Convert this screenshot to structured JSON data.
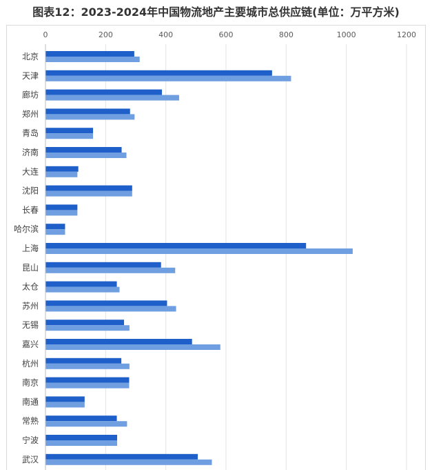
{
  "page": {
    "title": "图表12：2023-2024年中国物流地产主要城市总供应链(单位：万平方米)"
  },
  "chart_data": {
    "type": "bar",
    "orientation": "horizontal",
    "title": "图表12：2023-2024年中国物流地产主要城市总供应链(单位：万平方米)",
    "xlim": [
      0,
      1200
    ],
    "xticks": [
      0,
      200,
      400,
      600,
      800,
      1000,
      1200
    ],
    "grid": true,
    "legend": "none",
    "categories": [
      "北京",
      "天津",
      "廊坊",
      "郑州",
      "青岛",
      "济南",
      "大连",
      "沈阳",
      "长春",
      "哈尔滨",
      "上海",
      "昆山",
      "太仓",
      "苏州",
      "无锡",
      "嘉兴",
      "杭州",
      "南京",
      "南通",
      "常熟",
      "宁波",
      "武汉"
    ],
    "series": [
      {
        "color": "#1f5fc9",
        "values": [
          294,
          752,
          386,
          280,
          157,
          252,
          108,
          287,
          105,
          64,
          865,
          383,
          236,
          403,
          260,
          486,
          251,
          277,
          129,
          236,
          237,
          505
        ]
      },
      {
        "color": "#6f9fe0",
        "values": [
          312,
          815,
          443,
          295,
          157,
          268,
          105,
          287,
          105,
          64,
          1020,
          430,
          245,
          433,
          278,
          580,
          278,
          277,
          129,
          270,
          237,
          552
        ]
      }
    ]
  }
}
